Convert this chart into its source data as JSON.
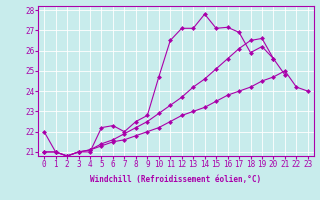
{
  "xlabel": "Windchill (Refroidissement éolien,°C)",
  "background_color": "#c8ecec",
  "line_color": "#aa00aa",
  "xlim": [
    -0.5,
    23.5
  ],
  "ylim": [
    20.8,
    28.2
  ],
  "yticks": [
    21,
    22,
    23,
    24,
    25,
    26,
    27,
    28
  ],
  "xticks": [
    0,
    1,
    2,
    3,
    4,
    5,
    6,
    7,
    8,
    9,
    10,
    11,
    12,
    13,
    14,
    15,
    16,
    17,
    18,
    19,
    20,
    21,
    22,
    23
  ],
  "s1_x": [
    0,
    1,
    2,
    3,
    4,
    5,
    6,
    7,
    8,
    9,
    10,
    11,
    12,
    13,
    14,
    15,
    16,
    17,
    18,
    19,
    20,
    21
  ],
  "s1_y": [
    22.0,
    21.0,
    20.8,
    21.0,
    21.0,
    22.2,
    22.3,
    22.0,
    22.5,
    22.8,
    24.7,
    26.5,
    27.1,
    27.1,
    27.8,
    27.1,
    27.15,
    26.9,
    25.9,
    26.2,
    25.6,
    24.8
  ],
  "s2_x": [
    0,
    1,
    2,
    3,
    4,
    5,
    6,
    7,
    8,
    9,
    10,
    11,
    12,
    13,
    14,
    15,
    16,
    17,
    18,
    19,
    20,
    21,
    22,
    23
  ],
  "s2_y": [
    21.0,
    21.0,
    20.8,
    21.0,
    21.1,
    21.3,
    21.5,
    21.6,
    21.8,
    22.0,
    22.2,
    22.5,
    22.8,
    23.0,
    23.2,
    23.5,
    23.8,
    24.0,
    24.2,
    24.5,
    24.7,
    25.0,
    24.2,
    24.0
  ],
  "s3_x": [
    0,
    1,
    2,
    3,
    4,
    5,
    6,
    7,
    8,
    9,
    10,
    11,
    12,
    13,
    14,
    15,
    16,
    17,
    18,
    19,
    20
  ],
  "s3_y": [
    21.0,
    21.0,
    20.8,
    21.0,
    21.1,
    21.4,
    21.6,
    21.9,
    22.2,
    22.5,
    22.9,
    23.3,
    23.7,
    24.2,
    24.6,
    25.1,
    25.6,
    26.1,
    26.5,
    26.6,
    25.6
  ],
  "marker": "D",
  "markersize": 2.5,
  "linewidth": 0.8,
  "tick_fontsize": 5.5,
  "xlabel_fontsize": 5.5
}
